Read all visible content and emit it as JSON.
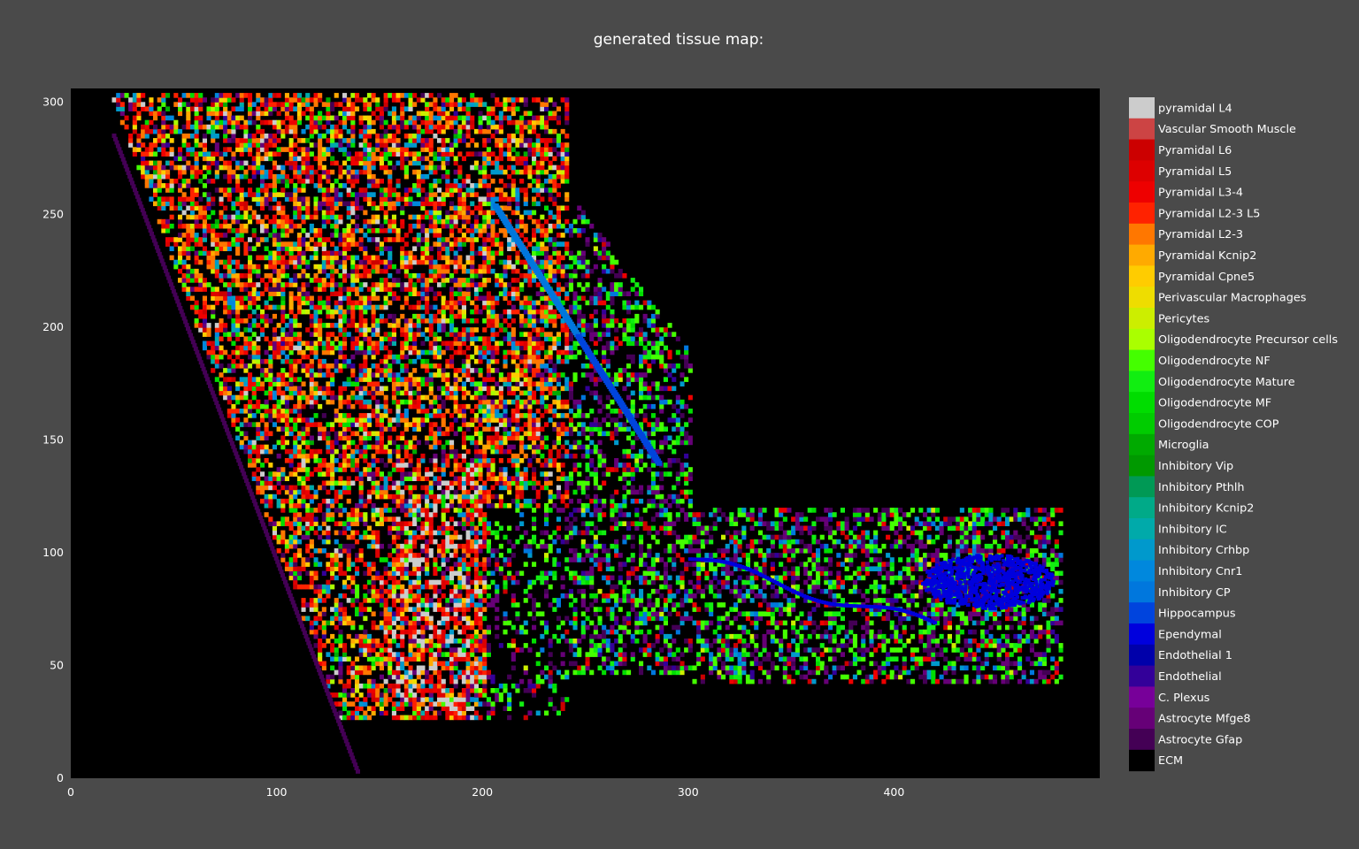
{
  "chart_data": {
    "type": "heatmap",
    "title": "generated tissue map:",
    "xlabel": "",
    "ylabel": "",
    "xlim": [
      0,
      500
    ],
    "ylim": [
      0,
      306
    ],
    "x_ticks": [
      0,
      100,
      200,
      300,
      400
    ],
    "y_ticks": [
      0,
      50,
      100,
      150,
      200,
      250,
      300
    ],
    "background": "#4a4a4a",
    "plot_background": "#000000",
    "grid": false,
    "legend_position": "right",
    "categories": [
      {
        "name": "pyramidal L4",
        "color": "#cccccc"
      },
      {
        "name": "Vascular Smooth Muscle",
        "color": "#cc4444"
      },
      {
        "name": "Pyramidal L6",
        "color": "#cc0000"
      },
      {
        "name": "Pyramidal L5",
        "color": "#dd0000"
      },
      {
        "name": "Pyramidal L3-4",
        "color": "#ee0000"
      },
      {
        "name": "Pyramidal L2-3 L5",
        "color": "#ff2200"
      },
      {
        "name": "Pyramidal L2-3",
        "color": "#ff7700"
      },
      {
        "name": "Pyramidal Kcnip2",
        "color": "#ffaa00"
      },
      {
        "name": "Pyramidal Cpne5",
        "color": "#ffcc00"
      },
      {
        "name": "Perivascular Macrophages",
        "color": "#eedd00"
      },
      {
        "name": "Pericytes",
        "color": "#ccee00"
      },
      {
        "name": "Oligodendrocyte Precursor cells",
        "color": "#aaff00"
      },
      {
        "name": "Oligodendrocyte NF",
        "color": "#44ff00"
      },
      {
        "name": "Oligodendrocyte Mature",
        "color": "#11ee11"
      },
      {
        "name": "Oligodendrocyte MF",
        "color": "#00dd00"
      },
      {
        "name": "Oligodendrocyte COP",
        "color": "#00cc00"
      },
      {
        "name": "Microglia",
        "color": "#00aa00"
      },
      {
        "name": "Inhibitory Vip",
        "color": "#009900"
      },
      {
        "name": "Inhibitory Pthlh",
        "color": "#009955"
      },
      {
        "name": "Inhibitory Kcnip2",
        "color": "#00aa88"
      },
      {
        "name": "Inhibitory IC",
        "color": "#00aaaa"
      },
      {
        "name": "Inhibitory Crhbp",
        "color": "#0099cc"
      },
      {
        "name": "Inhibitory Cnr1",
        "color": "#0088dd"
      },
      {
        "name": "Inhibitory CP",
        "color": "#0077dd"
      },
      {
        "name": "Hippocampus",
        "color": "#0044dd"
      },
      {
        "name": "Ependymal",
        "color": "#0000dd"
      },
      {
        "name": "Endothelial 1",
        "color": "#0000aa"
      },
      {
        "name": "Endothelial",
        "color": "#330099"
      },
      {
        "name": "C. Plexus",
        "color": "#770099"
      },
      {
        "name": "Astrocyte Mfge8",
        "color": "#660077"
      },
      {
        "name": "Astrocyte Gfap",
        "color": "#440055"
      },
      {
        "name": "ECM",
        "color": "#000000"
      }
    ]
  }
}
